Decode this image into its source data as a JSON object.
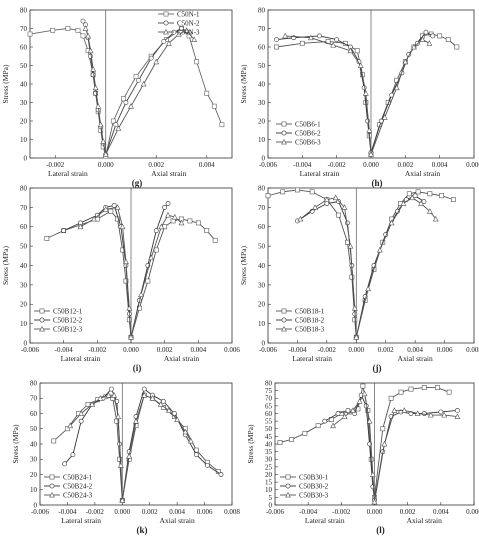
{
  "chart_data": [
    {
      "type": "line",
      "panel_label": "(g)",
      "ylabel": "Stress (MPa)",
      "xlabel_left": "Lateral strain",
      "xlabel_right": "Axial strain",
      "xlim": [
        -0.003,
        0.005
      ],
      "ylim": [
        0,
        80
      ],
      "xticks": [
        -0.002,
        0.0,
        0.002,
        0.004
      ],
      "xtick_labels": [
        "-0.002",
        "0.000",
        "0.002",
        "0.004"
      ],
      "yticks": [
        0,
        10,
        20,
        30,
        40,
        50,
        60,
        70,
        80
      ],
      "ytick_labels": [
        "0",
        "10",
        "20",
        "30",
        "40",
        "50",
        "60",
        "70",
        "80"
      ],
      "legend_position": "top-right",
      "series": [
        {
          "name": "C50N-1",
          "marker": "square",
          "color": "#666666",
          "x": [
            -0.003,
            -0.0021,
            -0.0015,
            -0.0011,
            -0.0009,
            -0.0007,
            -0.0005,
            -0.0004,
            -0.0003,
            -0.0002,
            -0.0001,
            0.0,
            0.0003,
            0.0007,
            0.0012,
            0.0018,
            0.0024,
            0.003,
            0.0033,
            0.0036,
            0.004,
            0.0043,
            0.0046
          ],
          "y": [
            67,
            69,
            70,
            69,
            66,
            58,
            45,
            35,
            25,
            15,
            6,
            1,
            20,
            32,
            44,
            55,
            64,
            70,
            66,
            52,
            35,
            28,
            18
          ]
        },
        {
          "name": "C50N-2",
          "marker": "circle",
          "color": "#444444",
          "x": [
            -0.0009,
            -0.0008,
            -0.0007,
            -0.0006,
            -0.0005,
            -0.0004,
            -0.0003,
            -0.0002,
            -0.0001,
            0.0,
            0.0004,
            0.0008,
            0.0013,
            0.0018,
            0.0023,
            0.0027,
            0.003,
            0.0033
          ],
          "y": [
            74,
            72,
            65,
            55,
            45,
            35,
            26,
            17,
            8,
            2,
            18,
            30,
            42,
            54,
            63,
            68,
            70,
            68
          ]
        },
        {
          "name": "C50N-3",
          "marker": "triangle",
          "color": "#555555",
          "x": [
            -0.0008,
            -0.0007,
            -0.0006,
            -0.0005,
            -0.0004,
            -0.0003,
            -0.0002,
            -0.0001,
            0.0,
            0.0005,
            0.001,
            0.0015,
            0.002,
            0.0025,
            0.0029,
            0.0032,
            0.0035
          ],
          "y": [
            70,
            66,
            58,
            48,
            38,
            28,
            18,
            9,
            2,
            16,
            28,
            40,
            52,
            62,
            67,
            69,
            64
          ]
        }
      ]
    },
    {
      "type": "line",
      "panel_label": "(h)",
      "ylabel": "Stress (MPa)",
      "xlabel_left": "Lateral strain",
      "xlabel_right": "Axial strain",
      "xlim": [
        -0.006,
        0.006
      ],
      "ylim": [
        0,
        80
      ],
      "xticks": [
        -0.006,
        -0.004,
        -0.002,
        0.0,
        0.002,
        0.004,
        0.006
      ],
      "xtick_labels": [
        "-0.006",
        "-0.004",
        "-0.002",
        "0.000",
        "0.002",
        "0.004",
        "0.006"
      ],
      "yticks": [
        0,
        10,
        20,
        30,
        40,
        50,
        60,
        70,
        80
      ],
      "ytick_labels": [
        "0",
        "10",
        "20",
        "30",
        "40",
        "50",
        "60",
        "70",
        "80"
      ],
      "legend_position": "bottom-left",
      "series": [
        {
          "name": "C50B6-1",
          "marker": "square",
          "color": "#555555",
          "x": [
            -0.0055,
            -0.004,
            -0.0025,
            -0.0015,
            -0.0008,
            -0.0005,
            -0.0003,
            -0.0001,
            0.0,
            0.0005,
            0.001,
            0.0015,
            0.002,
            0.0025,
            0.003,
            0.0035,
            0.004,
            0.0045,
            0.005
          ],
          "y": [
            60,
            62,
            63,
            62,
            58,
            45,
            30,
            12,
            2,
            18,
            30,
            42,
            52,
            60,
            66,
            67,
            66,
            64,
            60
          ]
        },
        {
          "name": "C50B6-2",
          "marker": "circle",
          "color": "#333333",
          "x": [
            -0.0055,
            -0.0045,
            -0.003,
            -0.002,
            -0.0012,
            -0.0007,
            -0.0004,
            -0.0002,
            0.0,
            0.0006,
            0.0012,
            0.0018,
            0.0022,
            0.0027,
            0.0032,
            0.0036
          ],
          "y": [
            64,
            65,
            66,
            64,
            60,
            52,
            38,
            20,
            3,
            20,
            34,
            46,
            56,
            62,
            68,
            66
          ]
        },
        {
          "name": "C50B6-3",
          "marker": "triangle",
          "color": "#555555",
          "x": [
            -0.005,
            -0.0035,
            -0.0022,
            -0.0012,
            -0.0006,
            -0.0003,
            -0.0001,
            0.0,
            0.0008,
            0.0015,
            0.002,
            0.0025,
            0.003,
            0.0034
          ],
          "y": [
            66,
            65,
            61,
            58,
            50,
            35,
            15,
            2,
            22,
            38,
            52,
            60,
            64,
            62
          ]
        }
      ]
    },
    {
      "type": "line",
      "panel_label": "(i)",
      "ylabel": "Stress (MPa)",
      "xlabel_left": "Lateral strain",
      "xlabel_right": "Axial strain",
      "xlim": [
        -0.006,
        0.006
      ],
      "ylim": [
        0,
        80
      ],
      "xticks": [
        -0.006,
        -0.004,
        -0.002,
        0.0,
        0.002,
        0.004,
        0.006
      ],
      "xtick_labels": [
        "-0.006",
        "-0.004",
        "-0.002",
        "0.000",
        "0.002",
        "0.004",
        "0.006"
      ],
      "yticks": [
        0,
        10,
        20,
        30,
        40,
        50,
        60,
        70,
        80
      ],
      "ytick_labels": [
        "0",
        "10",
        "20",
        "30",
        "40",
        "50",
        "60",
        "70",
        "80"
      ],
      "legend_position": "bottom-left",
      "series": [
        {
          "name": "C50B12-1",
          "marker": "square",
          "color": "#555555",
          "x": [
            -0.005,
            -0.004,
            -0.003,
            -0.002,
            -0.0012,
            -0.0008,
            -0.0005,
            -0.0003,
            -0.0001,
            0.0,
            0.0005,
            0.001,
            0.0015,
            0.002,
            0.0025,
            0.003,
            0.0035,
            0.004,
            0.0045,
            0.005
          ],
          "y": [
            54,
            58,
            61,
            64,
            68,
            64,
            48,
            32,
            12,
            3,
            18,
            32,
            48,
            60,
            63,
            64,
            63,
            62,
            58,
            53
          ]
        },
        {
          "name": "C50B12-2",
          "marker": "circle",
          "color": "#333333",
          "x": [
            -0.004,
            -0.003,
            -0.002,
            -0.0015,
            -0.001,
            -0.0006,
            -0.0003,
            -0.0001,
            0.0,
            0.0005,
            0.001,
            0.0015,
            0.002,
            0.0022
          ],
          "y": [
            58,
            62,
            66,
            70,
            71,
            60,
            40,
            15,
            3,
            22,
            40,
            58,
            70,
            72
          ]
        },
        {
          "name": "C50B12-3",
          "marker": "triangle",
          "color": "#555555",
          "x": [
            -0.003,
            -0.0022,
            -0.0015,
            -0.0008,
            -0.0005,
            -0.0003,
            -0.0001,
            0.0,
            0.0006,
            0.0012,
            0.0018,
            0.0022,
            0.0026,
            0.003
          ],
          "y": [
            60,
            64,
            69,
            70,
            60,
            42,
            18,
            3,
            25,
            44,
            60,
            66,
            65,
            62
          ]
        }
      ]
    },
    {
      "type": "line",
      "panel_label": "(j)",
      "ylabel": "Stress (MPa)",
      "xlabel_left": "Lateral strain",
      "xlabel_right": "Axial strain",
      "xlim": [
        -0.006,
        0.008
      ],
      "ylim": [
        0,
        80
      ],
      "xticks": [
        -0.006,
        -0.004,
        -0.002,
        0.0,
        0.002,
        0.004,
        0.006,
        0.008
      ],
      "xtick_labels": [
        "-0.006",
        "-0.004",
        "-0.002",
        "0.000",
        "0.002",
        "0.004",
        "0.006",
        "0.008"
      ],
      "yticks": [
        0,
        10,
        20,
        30,
        40,
        50,
        60,
        70,
        80
      ],
      "ytick_labels": [
        "0",
        "10",
        "20",
        "30",
        "40",
        "50",
        "60",
        "70",
        "80"
      ],
      "legend_position": "bottom-left",
      "series": [
        {
          "name": "C50B18-1",
          "marker": "square",
          "color": "#555555",
          "x": [
            -0.006,
            -0.005,
            -0.004,
            -0.003,
            -0.002,
            -0.0012,
            -0.0006,
            -0.0003,
            -0.0001,
            0.0,
            0.0006,
            0.0012,
            0.0018,
            0.0024,
            0.003,
            0.0036,
            0.0042,
            0.005,
            0.0058,
            0.0066
          ],
          "y": [
            76,
            78,
            79,
            78,
            74,
            66,
            52,
            34,
            12,
            3,
            22,
            38,
            52,
            64,
            72,
            77,
            78,
            77,
            76,
            74
          ]
        },
        {
          "name": "C50B18-2",
          "marker": "circle",
          "color": "#333333",
          "x": [
            -0.004,
            -0.003,
            -0.002,
            -0.0012,
            -0.0006,
            -0.0003,
            -0.0001,
            0.0,
            0.0006,
            0.0012,
            0.002,
            0.0028,
            0.0034,
            0.004,
            0.0046
          ],
          "y": [
            63,
            68,
            72,
            73,
            62,
            40,
            15,
            3,
            24,
            40,
            56,
            68,
            74,
            76,
            73
          ]
        },
        {
          "name": "C50B18-3",
          "marker": "triangle",
          "color": "#555555",
          "x": [
            -0.0038,
            -0.0028,
            -0.002,
            -0.0014,
            -0.0008,
            -0.0004,
            -0.0001,
            0.0,
            0.0008,
            0.0016,
            0.0024,
            0.0032,
            0.0038,
            0.0044,
            0.005,
            0.0054
          ],
          "y": [
            64,
            70,
            74,
            75,
            70,
            50,
            18,
            3,
            28,
            48,
            62,
            72,
            75,
            72,
            68,
            64
          ]
        }
      ]
    },
    {
      "type": "line",
      "panel_label": "(k)",
      "ylabel": "Stress (MPa)",
      "xlabel_left": "Lateral strain",
      "xlabel_right": "Axial strain",
      "xlim": [
        -0.006,
        0.008
      ],
      "ylim": [
        0,
        80
      ],
      "xticks": [
        -0.006,
        -0.004,
        -0.002,
        0.0,
        0.002,
        0.004,
        0.006,
        0.008
      ],
      "xtick_labels": [
        "-0.006",
        "-0.004",
        "-0.002",
        "0.000",
        "0.002",
        "0.004",
        "0.006",
        "0.008"
      ],
      "yticks": [
        0,
        10,
        20,
        30,
        40,
        50,
        60,
        70,
        80
      ],
      "ytick_labels": [
        "0",
        "10",
        "20",
        "30",
        "40",
        "50",
        "60",
        "70",
        "80"
      ],
      "legend_position": "bottom-left",
      "series": [
        {
          "name": "C50B24-1",
          "marker": "square",
          "color": "#555555",
          "x": [
            -0.005,
            -0.004,
            -0.0032,
            -0.0025,
            -0.0018,
            -0.0012,
            -0.0007,
            -0.0004,
            -0.0002,
            0.0,
            0.0005,
            0.001,
            0.0016,
            0.0022,
            0.003,
            0.0038,
            0.0046,
            0.0054,
            0.0062,
            0.007
          ],
          "y": [
            42,
            50,
            60,
            66,
            69,
            71,
            70,
            55,
            30,
            3,
            30,
            52,
            72,
            70,
            64,
            58,
            50,
            36,
            28,
            22
          ]
        },
        {
          "name": "C50B24-2",
          "marker": "circle",
          "color": "#333333",
          "x": [
            -0.0042,
            -0.0036,
            -0.003,
            -0.0022,
            -0.0014,
            -0.0008,
            -0.0004,
            -0.0002,
            0.0,
            0.0005,
            0.001,
            0.0016,
            0.0022,
            0.003,
            0.0038,
            0.0046,
            0.0054,
            0.0062,
            0.0072
          ],
          "y": [
            27,
            33,
            55,
            66,
            70,
            76,
            68,
            40,
            3,
            35,
            58,
            76,
            72,
            68,
            60,
            46,
            33,
            26,
            20
          ]
        },
        {
          "name": "C50B24-3",
          "marker": "triangle",
          "color": "#555555",
          "x": [
            -0.0038,
            -0.003,
            -0.0022,
            -0.0016,
            -0.001,
            -0.0006,
            -0.0003,
            -0.0001,
            0.0,
            0.0005,
            0.001,
            0.0016,
            0.0022,
            0.0028,
            0.0034,
            0.004,
            0.0046,
            0.005
          ],
          "y": [
            52,
            60,
            66,
            70,
            72,
            72,
            58,
            26,
            3,
            32,
            55,
            72,
            70,
            66,
            62,
            56,
            48,
            42
          ]
        }
      ]
    },
    {
      "type": "line",
      "panel_label": "(l)",
      "ylabel": "Stress (MPa)",
      "xlabel_left": "Lateral strain",
      "xlabel_right": "Axial strain",
      "xlim": [
        -0.006,
        0.006
      ],
      "ylim": [
        0,
        80
      ],
      "xticks": [
        -0.006,
        -0.004,
        -0.002,
        0.0,
        0.002,
        0.004,
        0.006
      ],
      "xtick_labels": [
        "-0.006",
        "-0.004",
        "-0.002",
        "0.000",
        "0.002",
        "0.004",
        "0.006"
      ],
      "yticks": [
        0,
        5,
        10,
        15,
        20,
        25,
        30,
        35,
        40,
        45,
        50,
        55,
        60,
        65,
        70,
        75,
        80
      ],
      "ytick_labels": [
        "0",
        "5",
        "10",
        "15",
        "20",
        "25",
        "30",
        "35",
        "40",
        "45",
        "50",
        "55",
        "60",
        "65",
        "70",
        "75",
        "80"
      ],
      "legend_position": "bottom-left",
      "series": [
        {
          "name": "C50B30-1",
          "marker": "square",
          "color": "#555555",
          "x": [
            -0.0057,
            -0.005,
            -0.0042,
            -0.0034,
            -0.0026,
            -0.002,
            -0.0015,
            -0.001,
            -0.0007,
            -0.0004,
            -0.0002,
            0.0,
            0.0005,
            0.001,
            0.0016,
            0.0022,
            0.003,
            0.0038,
            0.0045
          ],
          "y": [
            41,
            43,
            47,
            52,
            56,
            60,
            61,
            63,
            78,
            62,
            30,
            5,
            50,
            70,
            74,
            76,
            77,
            77,
            74
          ]
        },
        {
          "name": "C50B30-2",
          "marker": "circle",
          "color": "#333333",
          "x": [
            -0.003,
            -0.0022,
            -0.0016,
            -0.0012,
            -0.0008,
            -0.0005,
            -0.0003,
            -0.0001,
            0.0,
            0.0005,
            0.001,
            0.0016,
            0.0022,
            0.003,
            0.004,
            0.005
          ],
          "y": [
            55,
            60,
            62,
            60,
            72,
            65,
            40,
            12,
            3,
            35,
            58,
            61,
            60,
            60,
            61,
            62
          ]
        },
        {
          "name": "C50B30-3",
          "marker": "triangle",
          "color": "#555555",
          "x": [
            -0.0025,
            -0.0018,
            -0.0013,
            -0.0009,
            -0.0006,
            -0.0003,
            -0.0001,
            0.0,
            0.0006,
            0.0012,
            0.0018,
            0.0026,
            0.0034,
            0.0042,
            0.005
          ],
          "y": [
            52,
            58,
            62,
            68,
            73,
            55,
            20,
            2,
            40,
            62,
            62,
            60,
            59,
            59,
            58
          ]
        }
      ]
    }
  ]
}
